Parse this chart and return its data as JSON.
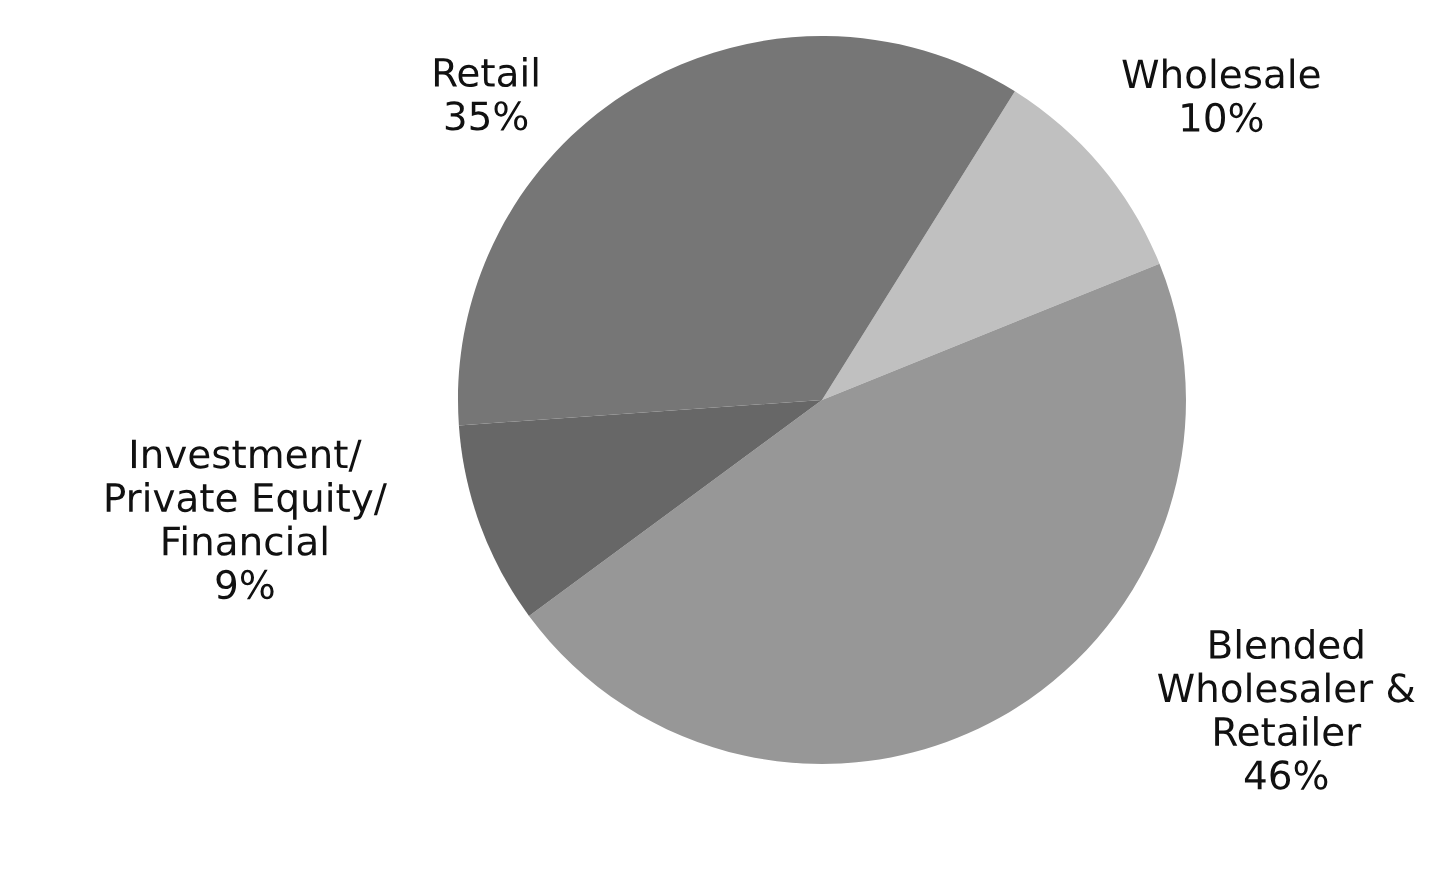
{
  "chart_data": {
    "type": "pie",
    "categories": [
      "Wholesale",
      "Blended\nWholesaler &\nRetailer",
      "Investment/\nPrivate Equity/\nFinancial",
      "Retail"
    ],
    "values": [
      10,
      46,
      9,
      35
    ],
    "value_labels": [
      "10%",
      "46%",
      "9%",
      "35%"
    ],
    "colors": [
      "#c0c0c0",
      "#979797",
      "#676767",
      "#767676"
    ]
  }
}
